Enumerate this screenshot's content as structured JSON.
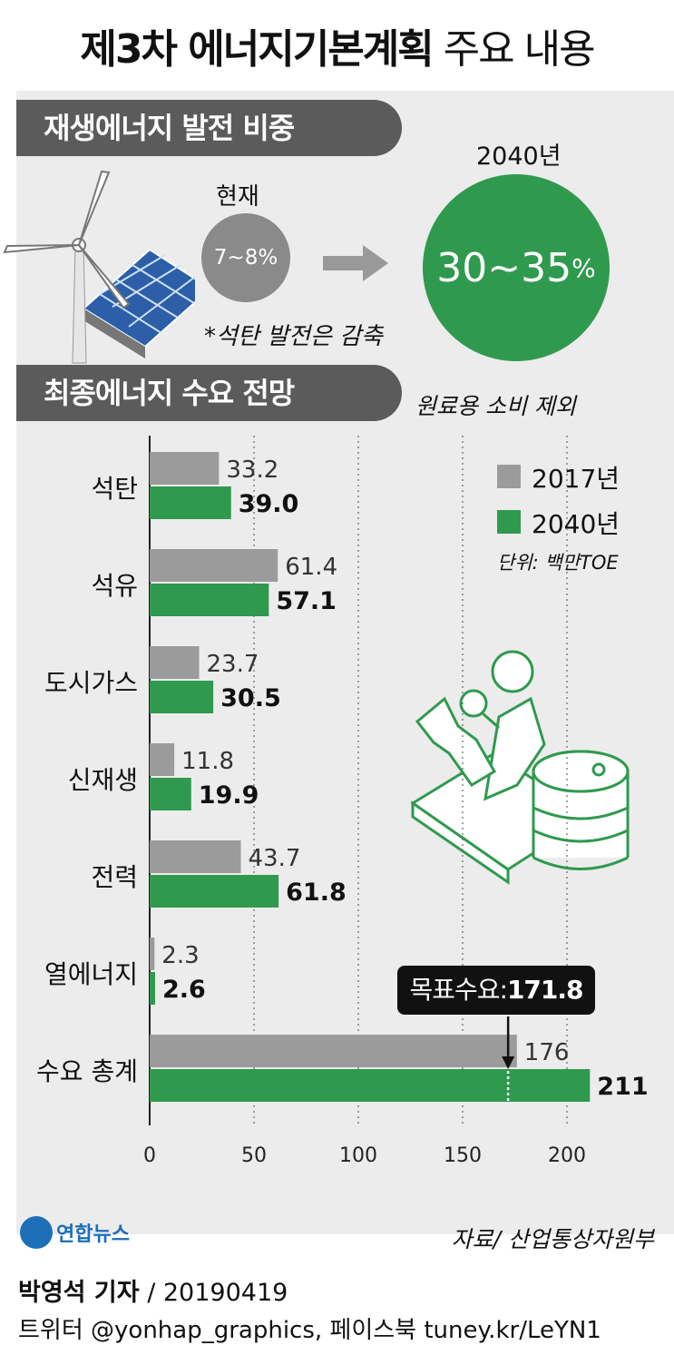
{
  "title_bold": "제3차 에너지기본계획",
  "title_light": "주요 내용",
  "section1": {
    "label": "재생에너지 발전 비중",
    "now_label": "현재",
    "now_value": "7~8%",
    "future_label": "2040년",
    "future_value": "30~35",
    "future_pct": "%",
    "note": "*석탄 발전은 감축"
  },
  "section2": {
    "label": "최종에너지 수요 전망",
    "note": "원료용 소비 제외",
    "unit": "단위: 백만TOE",
    "callout_label": "목표수요:",
    "callout_value": "171.8"
  },
  "colors": {
    "gray": "#9b9b9b",
    "green": "#2f9a4e",
    "dark_bar": "#5b5b5b"
  },
  "chart_data": {
    "type": "bar",
    "orientation": "horizontal",
    "categories": [
      "석탄",
      "석유",
      "도시가스",
      "신재생",
      "전력",
      "열에너지",
      "수요 총계"
    ],
    "series": [
      {
        "name": "2017년",
        "values": [
          33.2,
          61.4,
          23.7,
          11.8,
          43.7,
          2.3,
          176
        ],
        "labels": [
          "33.2",
          "61.4",
          "23.7",
          "11.8",
          "43.7",
          "2.3",
          "176"
        ]
      },
      {
        "name": "2040년",
        "values": [
          39.0,
          57.1,
          30.5,
          19.9,
          61.8,
          2.6,
          211
        ],
        "labels": [
          "39.0",
          "57.1",
          "30.5",
          "19.9",
          "61.8",
          "2.6",
          "211"
        ]
      }
    ],
    "xlim": [
      0,
      220
    ],
    "xticks": [
      "0",
      "50",
      "100",
      "150",
      "200"
    ],
    "target_value": 171.8,
    "legend_position": "top-right",
    "grid": "vertical dotted"
  },
  "footer": {
    "logo": "연합뉴스",
    "source": "자료/ 산업통상자원부",
    "reporter": "박영석 기자",
    "date": "/ 20190419",
    "social": "트위터 @yonhap_graphics, 페이스북 tuney.kr/LeYN1"
  }
}
